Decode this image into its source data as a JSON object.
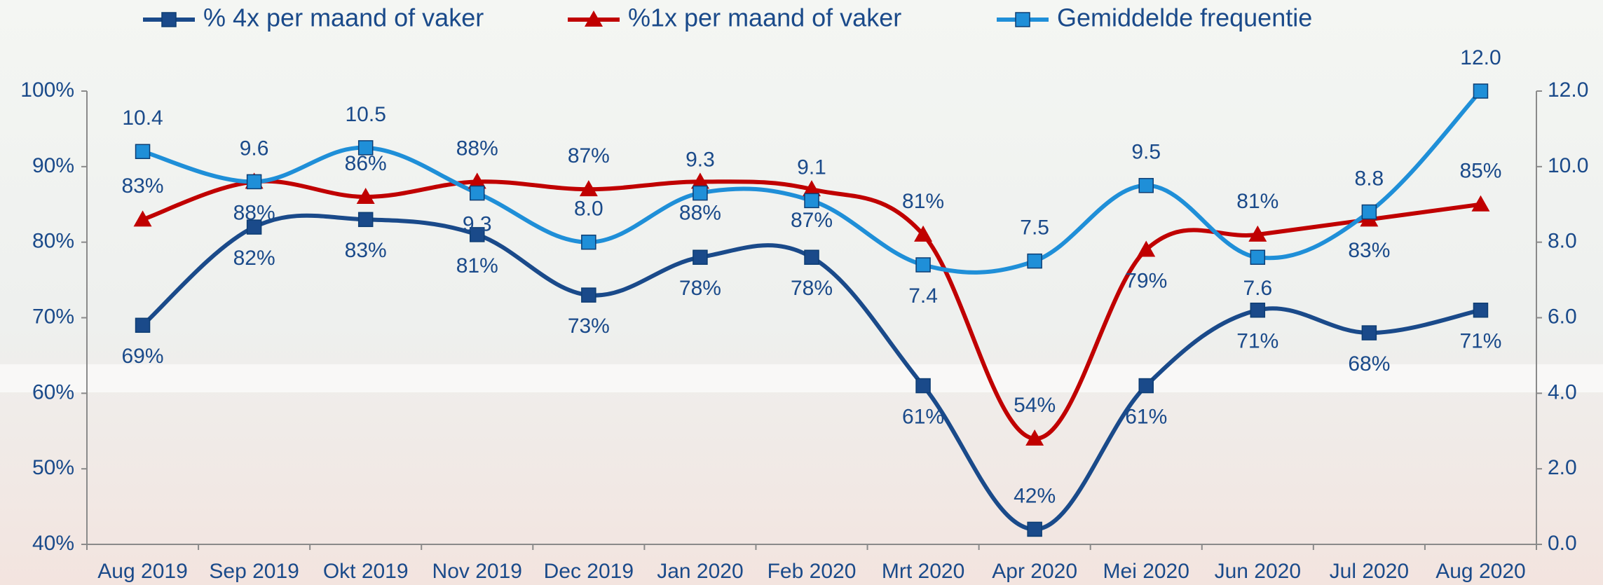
{
  "chart_data": {
    "type": "line",
    "categories": [
      "Aug 2019",
      "Sep 2019",
      "Okt 2019",
      "Nov 2019",
      "Dec 2019",
      "Jan 2020",
      "Feb 2020",
      "Mrt 2020",
      "Apr 2020",
      "Mei 2020",
      "Jun 2020",
      "Jul 2020",
      "Aug 2020"
    ],
    "series": [
      {
        "name": "% 4x per maand of vaker",
        "color": "#1a4a8a",
        "marker": "square",
        "values": [
          69,
          82,
          83,
          81,
          73,
          78,
          78,
          61,
          42,
          61,
          71,
          68,
          71
        ],
        "value_labels": [
          "69%",
          "82%",
          "83%",
          "81%",
          "73%",
          "78%",
          "78%",
          "61%",
          "42%",
          "61%",
          "71%",
          "68%",
          "71%"
        ]
      },
      {
        "name": "%1x per maand of vaker",
        "color": "#c00000",
        "marker": "triangle",
        "values": [
          83,
          88,
          86,
          88,
          87,
          88,
          87,
          81,
          54,
          79,
          81,
          83,
          85
        ],
        "value_labels": [
          "83%",
          "88%",
          "86%",
          "88%",
          "87%",
          "88%",
          "87%",
          "81%",
          "54%",
          "79%",
          "81%",
          "83%",
          "85%"
        ]
      },
      {
        "name": "Gemiddelde frequentie",
        "color": "#1f8fd8",
        "marker": "square",
        "axis": "y2",
        "values": [
          10.4,
          9.6,
          10.5,
          9.3,
          8.0,
          9.3,
          9.1,
          7.4,
          7.5,
          9.5,
          7.6,
          8.8,
          12.0
        ],
        "value_labels": [
          "10.4",
          "9.6",
          "10.5",
          "9.3",
          "8.0",
          "9.3",
          "9.1",
          "7.4",
          "7.5",
          "9.5",
          "7.6",
          "8.8",
          "12.0"
        ]
      }
    ],
    "ylim": [
      40,
      100
    ],
    "yticks": [
      {
        "value": 40,
        "label": "40%"
      },
      {
        "value": 50,
        "label": "50%"
      },
      {
        "value": 60,
        "label": "60%"
      },
      {
        "value": 70,
        "label": "70%"
      },
      {
        "value": 80,
        "label": "80%"
      },
      {
        "value": 90,
        "label": "90%"
      },
      {
        "value": 100,
        "label": "100%"
      }
    ],
    "y2lim": [
      0,
      12
    ],
    "y2ticks": [
      {
        "value": 0,
        "label": "0.0"
      },
      {
        "value": 2,
        "label": "2.0"
      },
      {
        "value": 4,
        "label": "4.0"
      },
      {
        "value": 6,
        "label": "6.0"
      },
      {
        "value": 8,
        "label": "8.0"
      },
      {
        "value": 10,
        "label": "10.0"
      },
      {
        "value": 12,
        "label": "12.0"
      }
    ],
    "grid": false,
    "legend": "top"
  }
}
